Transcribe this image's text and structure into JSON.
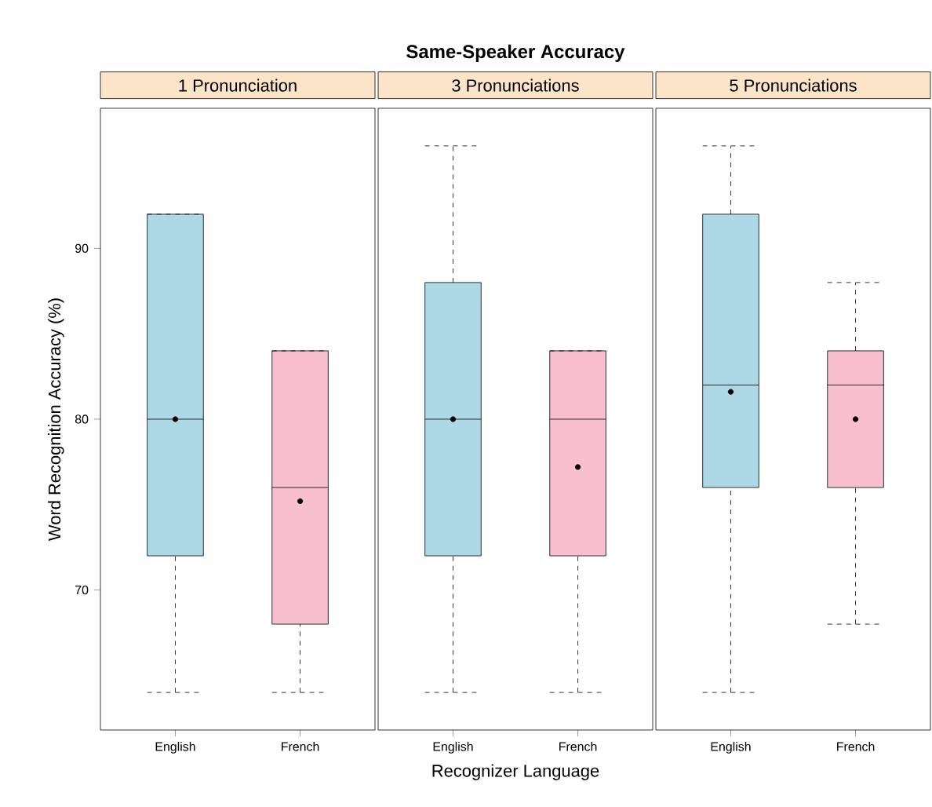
{
  "chart_data": [
    {
      "type": "box",
      "title": "1 Pronunciation",
      "ylabel": "Word Recognition Accuracy (%)",
      "categories": [
        "English",
        "French"
      ],
      "colors": [
        "#add8e6",
        "#f7bfcf"
      ],
      "ylim": [
        61.8,
        98.2
      ],
      "yticks": [
        70,
        80,
        90
      ],
      "boxes": [
        {
          "low": 64,
          "q1": 72,
          "median": 80,
          "q3": 92,
          "high": 92,
          "mean": 80
        },
        {
          "low": 64,
          "q1": 68,
          "median": 76,
          "q3": 84,
          "high": 84,
          "mean": 75.2
        }
      ]
    },
    {
      "type": "box",
      "title": "3 Pronunciations",
      "xlabel": "Recognizer Language",
      "annotations": [
        "Same-Speaker Accuracy"
      ],
      "categories": [
        "English",
        "French"
      ],
      "colors": [
        "#add8e6",
        "#f7bfcf"
      ],
      "ylim": [
        61.8,
        98.2
      ],
      "yticks": [
        70,
        80,
        90
      ],
      "tick_labels": "x",
      "boxes": [
        {
          "low": 64,
          "q1": 72,
          "median": 80,
          "q3": 88,
          "high": 96,
          "mean": 80
        },
        {
          "low": 64,
          "q1": 72,
          "median": 80,
          "q3": 84,
          "high": 84,
          "mean": 77.2
        }
      ]
    },
    {
      "type": "box",
      "title": "5 Pronunciations",
      "categories": [
        "English",
        "French"
      ],
      "colors": [
        "#add8e6",
        "#f7bfcf"
      ],
      "ylim": [
        61.8,
        98.2
      ],
      "yticks": [
        70,
        80,
        90
      ],
      "tick_labels": "x",
      "boxes": [
        {
          "low": 64,
          "q1": 76,
          "median": 82,
          "q3": 92,
          "high": 96,
          "mean": 81.6
        },
        {
          "low": 68,
          "q1": 76,
          "median": 82,
          "q3": 84,
          "high": 88,
          "mean": 80
        }
      ]
    }
  ]
}
